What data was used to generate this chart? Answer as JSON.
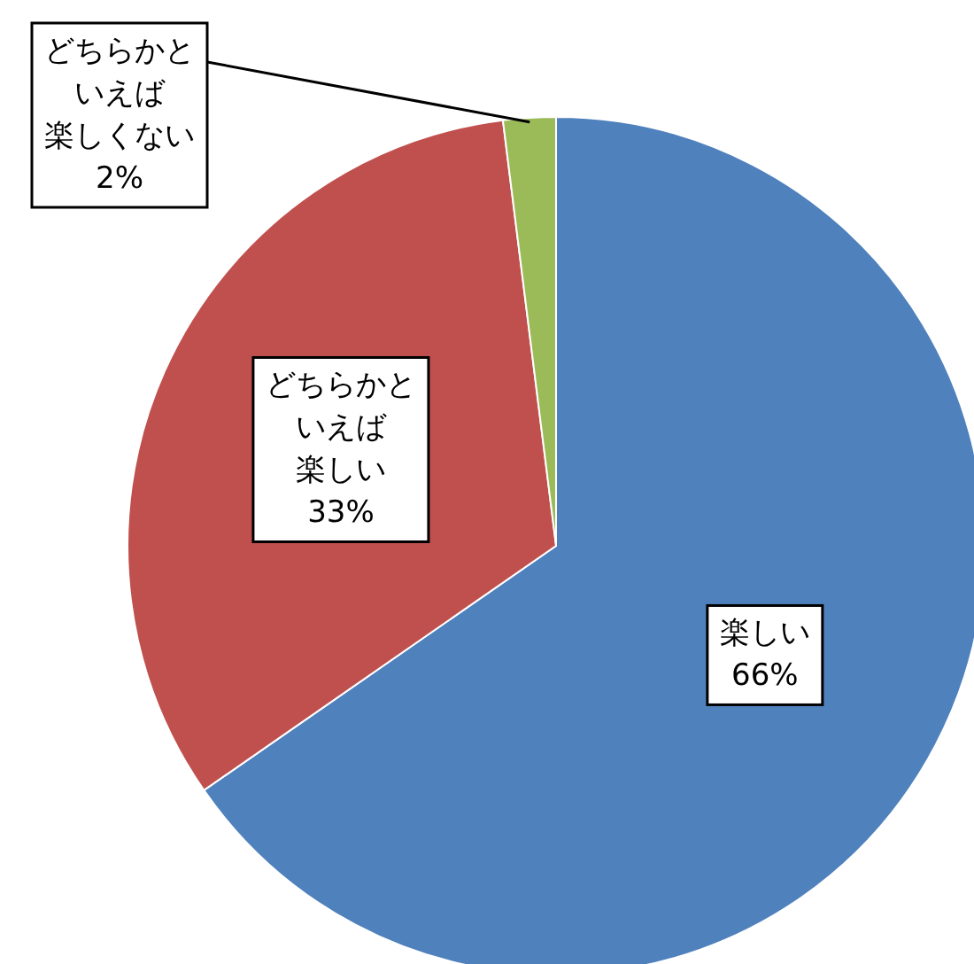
{
  "chart_data": {
    "type": "pie",
    "categories": [
      "楽しい",
      "どちらかといえば楽しい",
      "どちらかといえば楽しくない"
    ],
    "values": [
      66,
      33,
      2
    ],
    "value_labels": [
      "66%",
      "33%",
      "2%"
    ],
    "colors": [
      "#4f81bd",
      "#c0504d",
      "#9bbb59"
    ]
  }
}
